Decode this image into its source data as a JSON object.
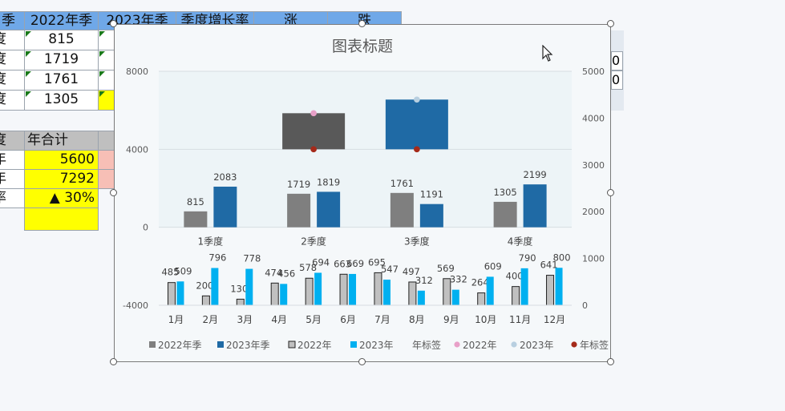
{
  "sheet": {
    "headers": [
      "季",
      "2022年季",
      "2023年季",
      "季度增长率",
      "涨",
      "跌"
    ],
    "rows": [
      {
        "label": "度",
        "v2022": "815"
      },
      {
        "label": "度",
        "v2022": "1719"
      },
      {
        "label": "度",
        "v2022": "1761"
      },
      {
        "label": "度",
        "v2022": "1305"
      }
    ],
    "summary_header": [
      "度",
      "年合计"
    ],
    "summary_rows": [
      {
        "label": "年",
        "value": "5600"
      },
      {
        "label": "年",
        "value": "7292"
      },
      {
        "label": "率",
        "value": "▲ 30%"
      }
    ],
    "right_values": [
      "0",
      "0"
    ]
  },
  "chart": {
    "title": "图表标题",
    "top_axis_ticks": [
      "8000",
      "4000",
      "0",
      "-4000"
    ],
    "right_axis_ticks": [
      "5000",
      "4000",
      "3000",
      "2000",
      "1000",
      "0"
    ],
    "legend": [
      {
        "label": "2022年季",
        "marker": "square",
        "color": "#7f7f7f"
      },
      {
        "label": "2023年季",
        "marker": "square",
        "color": "#1f6aa5"
      },
      {
        "label": "2022年",
        "marker": "square-outline",
        "color": "#c0c0c0"
      },
      {
        "label": "2023年",
        "marker": "square",
        "color": "#00b0f0"
      },
      {
        "label": "年标签",
        "marker": "none",
        "color": "#595959"
      },
      {
        "label": "2022年",
        "marker": "dot",
        "color": "#e8a0c8"
      },
      {
        "label": "2023年",
        "marker": "dot",
        "color": "#b8cfe0"
      },
      {
        "label": "年标签",
        "marker": "dot",
        "color": "#a52a1a"
      }
    ]
  },
  "chart_data": [
    {
      "type": "bar",
      "categories": [
        "1季度",
        "2季度",
        "3季度",
        "4季度"
      ],
      "series": [
        {
          "name": "2022年季",
          "values": [
            815,
            1719,
            1761,
            1305
          ],
          "color": "#7f7f7f"
        },
        {
          "name": "2023年季",
          "values": [
            2083,
            1819,
            1191,
            2199
          ],
          "color": "#1f6aa5"
        }
      ],
      "ylim": [
        -4000,
        8000
      ],
      "yticks": [
        8000,
        4000,
        0,
        -4000
      ]
    },
    {
      "type": "bar",
      "categories": [
        "2022年",
        "2023年"
      ],
      "series": [
        {
          "name": "年合计",
          "values": [
            5600,
            7292
          ]
        }
      ],
      "colors": [
        "#595959",
        "#1f6aa5"
      ],
      "markers": {
        "2022年": "#e8a0c8",
        "2023年": "#b8cfe0",
        "年标签": "#a52a1a"
      },
      "ylim": [
        -4000,
        8000
      ]
    },
    {
      "type": "bar",
      "categories": [
        "1月",
        "2月",
        "3月",
        "4月",
        "5月",
        "6月",
        "7月",
        "8月",
        "9月",
        "10月",
        "11月",
        "12月"
      ],
      "series": [
        {
          "name": "2022年",
          "values": [
            485,
            200,
            130,
            474,
            578,
            663,
            695,
            497,
            569,
            264,
            400,
            641
          ],
          "color": "#c0c0c0"
        },
        {
          "name": "2023年",
          "values": [
            509,
            796,
            778,
            456,
            694,
            669,
            547,
            312,
            332,
            609,
            790,
            800
          ],
          "color": "#00b0f0"
        }
      ],
      "ylim": [
        0,
        5000
      ],
      "yticks": [
        5000,
        4000,
        3000,
        2000,
        1000,
        0
      ]
    }
  ]
}
